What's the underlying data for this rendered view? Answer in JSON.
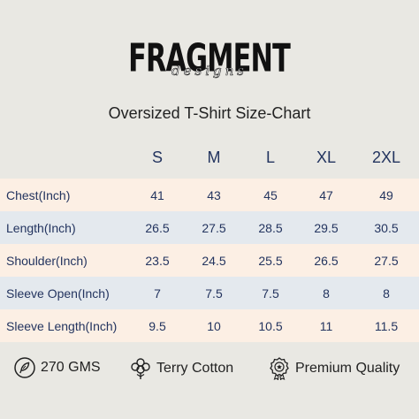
{
  "brand": {
    "name": "FRAGMENT",
    "sub": "designs"
  },
  "title": "Oversized T-Shirt Size-Chart",
  "sizes": [
    "S",
    "M",
    "L",
    "XL",
    "2XL"
  ],
  "rows": [
    {
      "label": "Chest(Inch)",
      "values": [
        "41",
        "43",
        "45",
        "47",
        "49"
      ]
    },
    {
      "label": "Length(Inch)",
      "values": [
        "26.5",
        "27.5",
        "28.5",
        "29.5",
        "30.5"
      ]
    },
    {
      "label": "Shoulder(Inch)",
      "values": [
        "23.5",
        "24.5",
        "25.5",
        "26.5",
        "27.5"
      ]
    },
    {
      "label": "Sleeve Open(Inch)",
      "values": [
        "7",
        "7.5",
        "7.5",
        "8",
        "8"
      ]
    },
    {
      "label": "Sleeve Length(Inch)",
      "values": [
        "9.5",
        "10",
        "10.5",
        "11",
        "11.5"
      ]
    }
  ],
  "features": [
    {
      "icon": "feather-icon",
      "label": "270 GMS"
    },
    {
      "icon": "cotton-flower-icon",
      "label": "Terry Cotton"
    },
    {
      "icon": "quality-badge-icon",
      "label": "Premium Quality"
    }
  ],
  "colors": {
    "background": "#e9e8e3",
    "row_peach": "#fcefe4",
    "row_blue": "#e4e9ee",
    "table_text": "#23345f"
  }
}
